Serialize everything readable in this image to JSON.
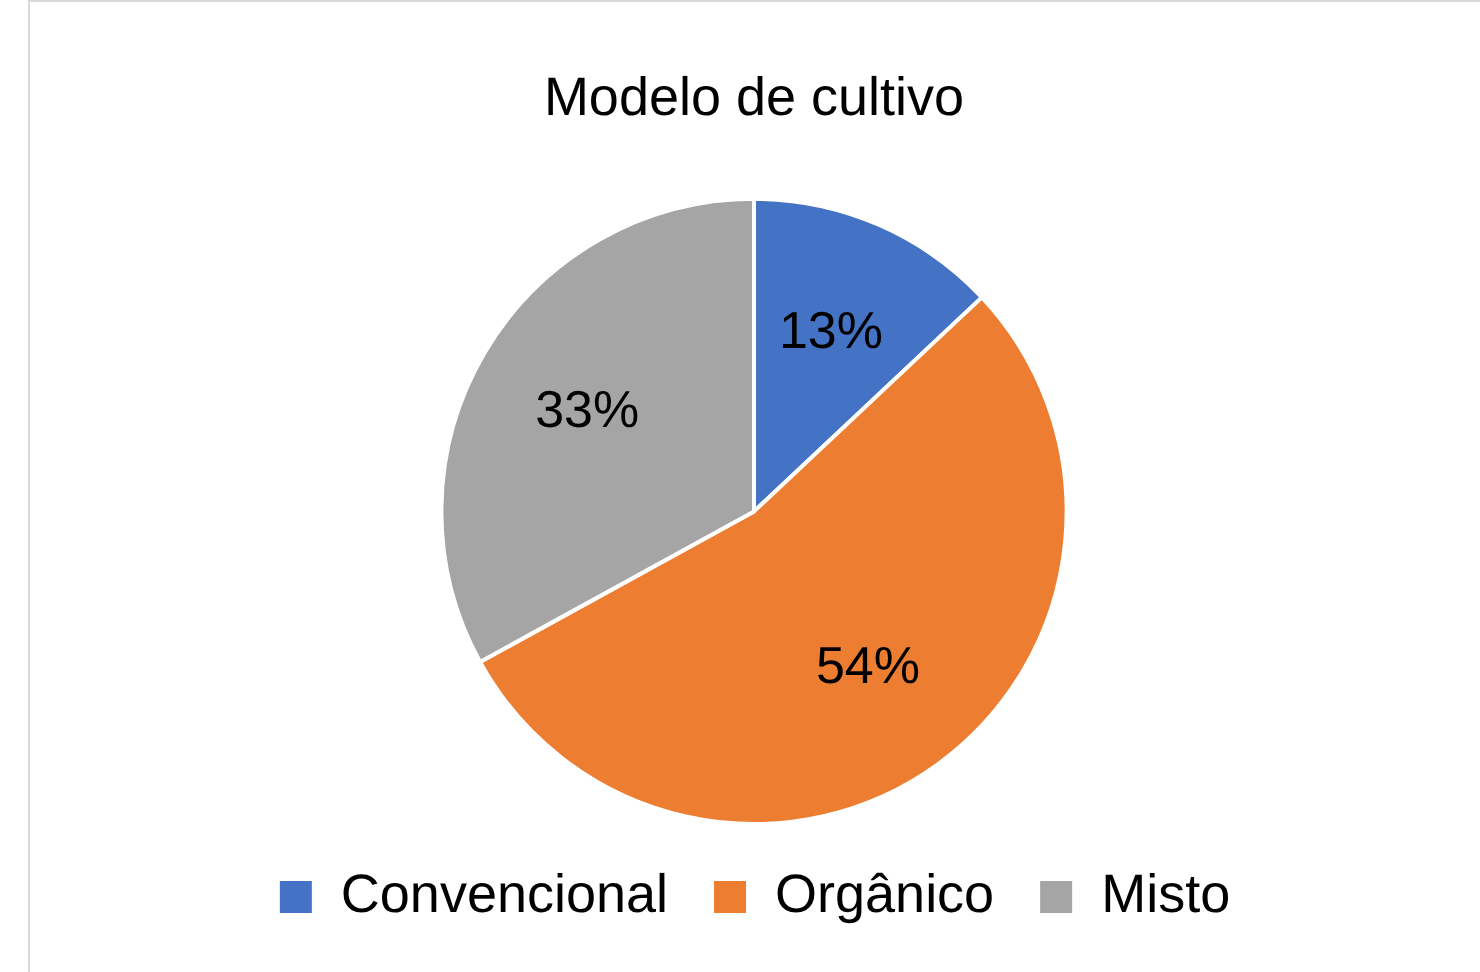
{
  "chart_data": {
    "type": "pie",
    "title": "Modelo de cultivo",
    "categories": [
      "Convencional",
      "Orgânico",
      "Misto"
    ],
    "values": [
      13,
      54,
      33
    ],
    "value_labels": [
      "13%",
      "54%",
      "33%"
    ],
    "colors": [
      "#4472c4",
      "#ed7d31",
      "#a5a5a5"
    ],
    "legend": "bottom"
  }
}
